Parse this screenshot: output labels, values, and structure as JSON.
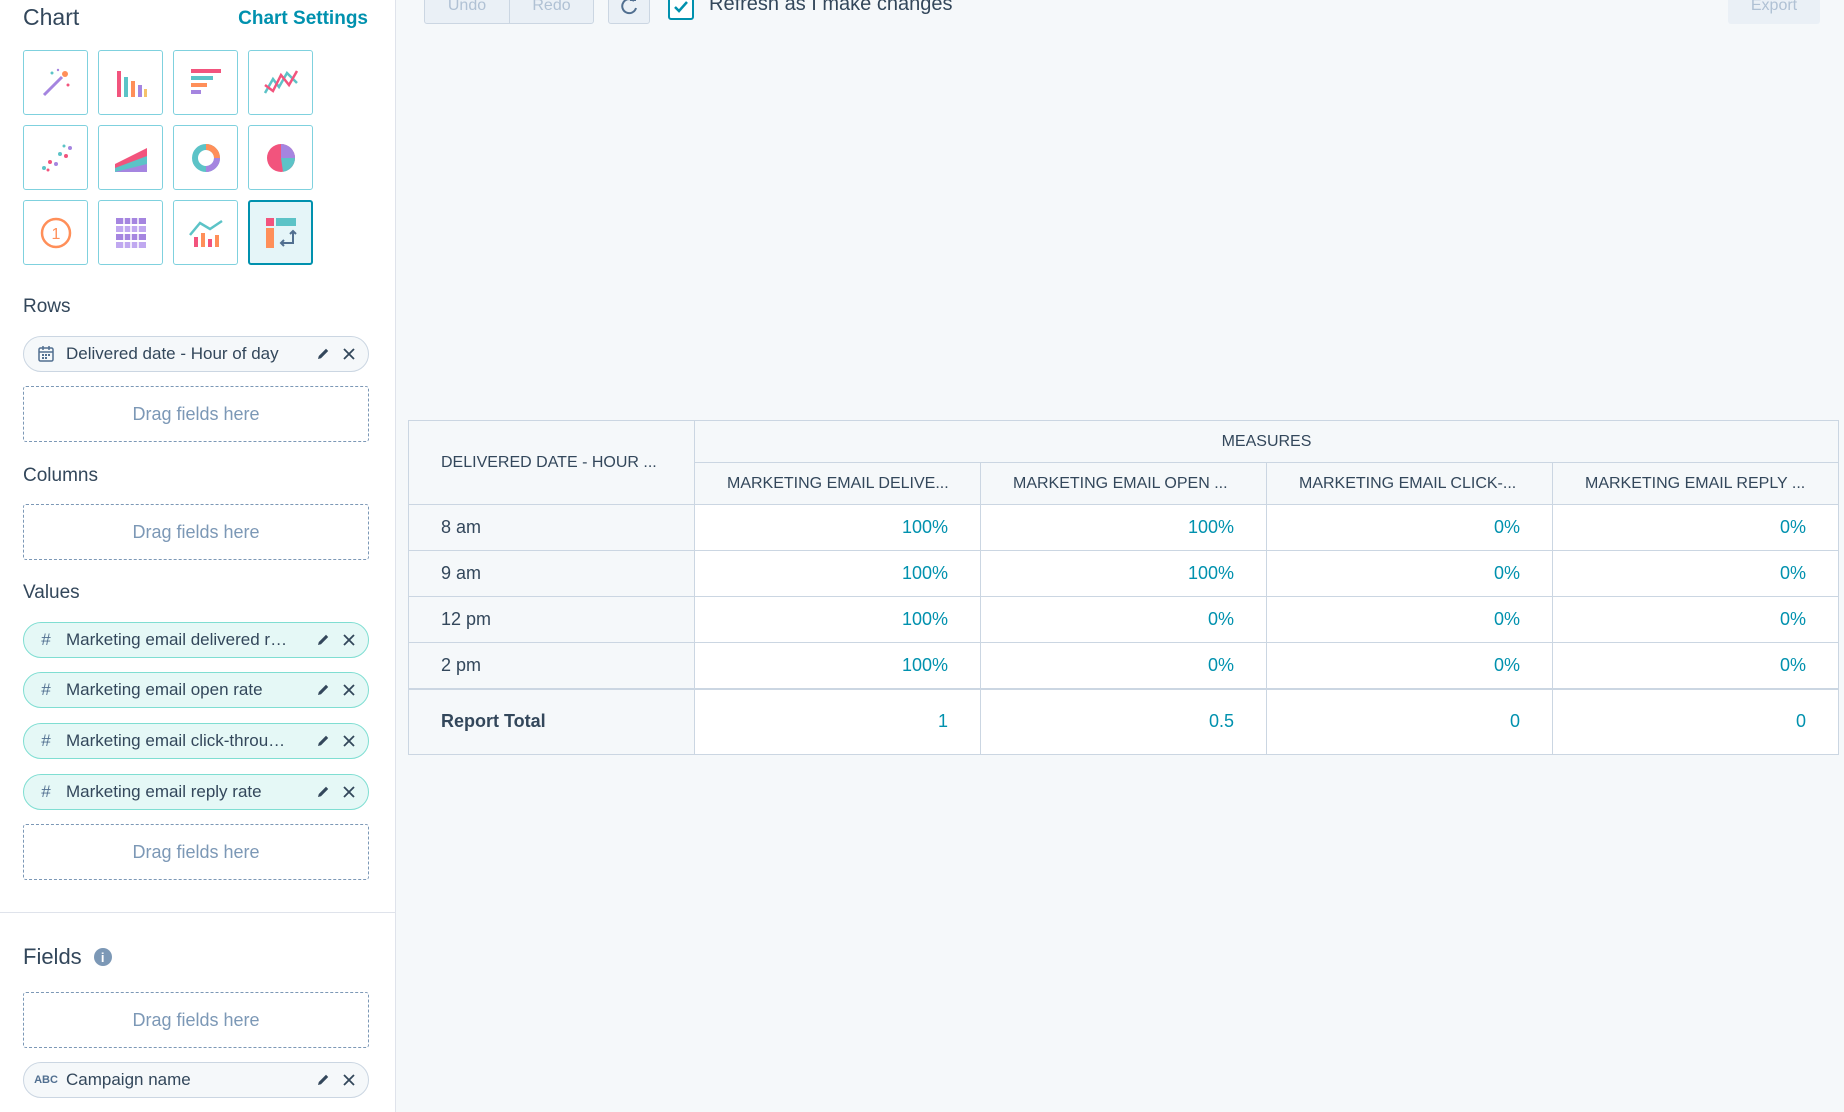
{
  "sidebar": {
    "chart_title": "Chart",
    "chart_settings": "Chart Settings",
    "chart_types": [
      {
        "icon": "magic-wand-icon",
        "name": "auto"
      },
      {
        "icon": "vertical-bar-chart-icon",
        "name": "vertical-bar"
      },
      {
        "icon": "horizontal-bar-chart-icon",
        "name": "horizontal-bar"
      },
      {
        "icon": "line-chart-icon",
        "name": "line"
      },
      {
        "icon": "scatter-chart-icon",
        "name": "scatter"
      },
      {
        "icon": "area-chart-icon",
        "name": "area"
      },
      {
        "icon": "donut-chart-icon",
        "name": "donut"
      },
      {
        "icon": "pie-chart-icon",
        "name": "pie"
      },
      {
        "icon": "summary-number-icon",
        "name": "summary"
      },
      {
        "icon": "table-icon",
        "name": "table"
      },
      {
        "icon": "combination-chart-icon",
        "name": "combination"
      },
      {
        "icon": "pivot-table-icon",
        "name": "pivot-table",
        "active": true
      }
    ],
    "rows_label": "Rows",
    "rows": [
      {
        "label": "Delivered date - Hour of day",
        "type_icon": "calendar-icon"
      }
    ],
    "columns_label": "Columns",
    "values_label": "Values",
    "values": [
      {
        "label": "Marketing email delivered r…",
        "type_icon": "hash-icon",
        "type_glyph": "#"
      },
      {
        "label": "Marketing email open rate",
        "type_icon": "hash-icon",
        "type_glyph": "#"
      },
      {
        "label": "Marketing email click-throu…",
        "type_icon": "hash-icon",
        "type_glyph": "#"
      },
      {
        "label": "Marketing email reply rate",
        "type_icon": "hash-icon",
        "type_glyph": "#"
      }
    ],
    "drop_placeholder": "Drag fields here",
    "fields_label": "Fields",
    "fields": [
      {
        "label": "Campaign name",
        "type_icon": "abc-icon",
        "type_glyph": "ABC"
      }
    ]
  },
  "toolbar": {
    "undo": "Undo",
    "redo": "Redo",
    "refresh_label": "Refresh as I make changes",
    "refresh_checked": true,
    "export": "Export"
  },
  "table": {
    "row_header": "DELIVERED DATE - HOUR ...",
    "measures_header": "MEASURES",
    "columns": [
      "MARKETING EMAIL DELIVE...",
      "MARKETING EMAIL OPEN ...",
      "MARKETING EMAIL CLICK-...",
      "MARKETING EMAIL REPLY ..."
    ],
    "rows": [
      {
        "label": "8 am",
        "values": [
          "100%",
          "100%",
          "0%",
          "0%"
        ]
      },
      {
        "label": "9 am",
        "values": [
          "100%",
          "100%",
          "0%",
          "0%"
        ]
      },
      {
        "label": "12 pm",
        "values": [
          "100%",
          "0%",
          "0%",
          "0%"
        ]
      },
      {
        "label": "2 pm",
        "values": [
          "100%",
          "0%",
          "0%",
          "0%"
        ]
      }
    ],
    "total": {
      "label": "Report Total",
      "values": [
        "1",
        "0.5",
        "0",
        "0"
      ]
    }
  },
  "colors": {
    "accent": "#0091ae",
    "text": "#33475b",
    "border": "#cbd6e2"
  }
}
